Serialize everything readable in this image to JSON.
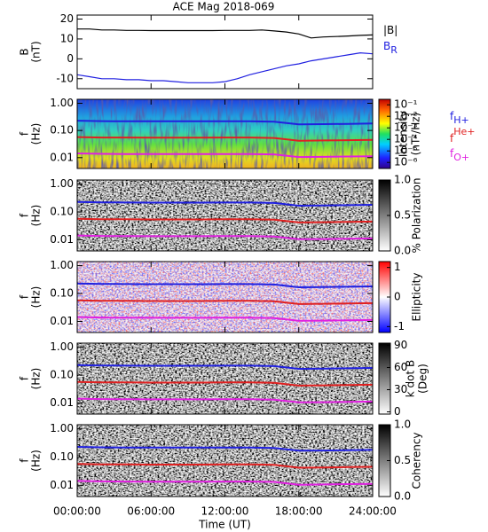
{
  "chart_data": [
    {
      "type": "line",
      "title": "ACE Mag 2018-069",
      "ylabel": [
        "B",
        "(nT)"
      ],
      "x": [
        0,
        1,
        2,
        3,
        4,
        5,
        6,
        7,
        8,
        9,
        10,
        11,
        12,
        13,
        14,
        15,
        16,
        17,
        18,
        19,
        20,
        21,
        22,
        23,
        24
      ],
      "xlim": [
        0,
        24
      ],
      "ylim": [
        -15,
        22
      ],
      "yticks": [
        -10,
        0,
        10,
        20
      ],
      "series": [
        {
          "name": "|B|",
          "color": "#000000",
          "values": [
            15,
            15,
            14.5,
            14.5,
            14.3,
            14.3,
            14.2,
            14.2,
            14.2,
            14.2,
            14.2,
            14.2,
            14.3,
            14.3,
            14.3,
            14.5,
            14,
            13.5,
            12.5,
            10.5,
            11,
            11.2,
            11.5,
            11.8,
            12
          ]
        },
        {
          "name": "B",
          "sub": "R",
          "color": "#2020e0",
          "values": [
            -8,
            -9,
            -10,
            -10,
            -10.5,
            -10.5,
            -11,
            -11,
            -11.5,
            -12,
            -12,
            -12,
            -11.5,
            -10,
            -8,
            -6.5,
            -5,
            -3.5,
            -2.5,
            -1,
            0,
            1,
            2,
            3,
            2.5
          ]
        }
      ]
    },
    {
      "type": "spectrogram",
      "ylabel": [
        "f",
        "(Hz)"
      ],
      "log_y": true,
      "ylim": [
        0.004,
        1.4
      ],
      "yticks": [
        {
          "value": 0.01,
          "label": "0.01"
        },
        {
          "value": 0.1,
          "label": "0.10"
        },
        {
          "value": 1,
          "label": "1.00"
        }
      ],
      "xlim": [
        0,
        24
      ],
      "x": [
        0,
        2,
        4,
        6,
        8,
        10,
        12,
        14,
        16,
        18,
        20,
        22,
        24
      ],
      "colormap": "jet",
      "colorbar_label": [
        "Intensity",
        "(nT²/Hz)"
      ],
      "clog": true,
      "clim": [
        3e-07,
        0.3
      ],
      "cticks": [
        {
          "value": 0.1,
          "label": "10⁻¹"
        },
        {
          "value": 0.01,
          "label": "10⁻²"
        },
        {
          "value": 0.001,
          "label": "10⁻³"
        },
        {
          "value": 0.0001,
          "label": "10⁻⁴"
        },
        {
          "value": 1e-05,
          "label": "10⁻⁵"
        },
        {
          "value": 1e-06,
          "label": "10⁻⁶"
        }
      ],
      "legend": true,
      "series": [
        {
          "name": "f",
          "sub": "H+",
          "color": "#2020e0",
          "values": [
            0.229,
            0.221,
            0.218,
            0.217,
            0.217,
            0.217,
            0.218,
            0.218,
            0.21,
            0.168,
            0.171,
            0.175,
            0.18
          ]
        },
        {
          "name": "f",
          "sup": "He+",
          "color": "#e02020",
          "values": [
            0.057,
            0.055,
            0.055,
            0.054,
            0.054,
            0.054,
            0.055,
            0.055,
            0.053,
            0.042,
            0.043,
            0.044,
            0.045
          ]
        },
        {
          "name": "f",
          "sub": "O+",
          "color": "#e020e0",
          "values": [
            0.0143,
            0.0138,
            0.0136,
            0.0135,
            0.0135,
            0.0135,
            0.0136,
            0.0136,
            0.0132,
            0.0105,
            0.0107,
            0.011,
            0.0112
          ]
        }
      ]
    },
    {
      "type": "spectrogram",
      "ylabel": [
        "f",
        "(Hz)"
      ],
      "log_y": true,
      "ylim": [
        0.004,
        1.4
      ],
      "yticks": [
        {
          "value": 0.01,
          "label": "0.01"
        },
        {
          "value": 0.1,
          "label": "0.10"
        },
        {
          "value": 1,
          "label": "1.00"
        }
      ],
      "xlim": [
        0,
        24
      ],
      "x": [
        0,
        2,
        4,
        6,
        8,
        10,
        12,
        14,
        16,
        18,
        20,
        22,
        24
      ],
      "colormap": "gray",
      "colorbar_label": [
        "% Polarization"
      ],
      "clim": [
        0,
        1
      ],
      "cticks": [
        {
          "value": 0,
          "label": "0.0"
        },
        {
          "value": 0.5,
          "label": "0.5"
        },
        {
          "value": 1,
          "label": "1.0"
        }
      ],
      "series": [
        {
          "color": "#2020e0",
          "values": [
            0.229,
            0.221,
            0.218,
            0.217,
            0.217,
            0.217,
            0.218,
            0.218,
            0.21,
            0.168,
            0.171,
            0.175,
            0.18
          ]
        },
        {
          "color": "#e02020",
          "values": [
            0.057,
            0.055,
            0.055,
            0.054,
            0.054,
            0.054,
            0.055,
            0.055,
            0.053,
            0.042,
            0.043,
            0.044,
            0.045
          ]
        },
        {
          "color": "#e020e0",
          "values": [
            0.0143,
            0.0138,
            0.0136,
            0.0135,
            0.0135,
            0.0135,
            0.0136,
            0.0136,
            0.0132,
            0.0105,
            0.0107,
            0.011,
            0.0112
          ]
        }
      ]
    },
    {
      "type": "spectrogram",
      "ylabel": [
        "f",
        "(Hz)"
      ],
      "log_y": true,
      "ylim": [
        0.004,
        1.4
      ],
      "yticks": [
        {
          "value": 0.01,
          "label": "0.01"
        },
        {
          "value": 0.1,
          "label": "0.10"
        },
        {
          "value": 1,
          "label": "1.00"
        }
      ],
      "xlim": [
        0,
        24
      ],
      "x": [
        0,
        2,
        4,
        6,
        8,
        10,
        12,
        14,
        16,
        18,
        20,
        22,
        24
      ],
      "colormap": "bwr",
      "colorbar_label": [
        "Ellipticity"
      ],
      "clim": [
        -1.2,
        1.2
      ],
      "cticks": [
        -1,
        0,
        1
      ],
      "series": [
        {
          "color": "#2020e0",
          "values": [
            0.229,
            0.221,
            0.218,
            0.217,
            0.217,
            0.217,
            0.218,
            0.218,
            0.21,
            0.168,
            0.171,
            0.175,
            0.18
          ]
        },
        {
          "color": "#e02020",
          "values": [
            0.057,
            0.055,
            0.055,
            0.054,
            0.054,
            0.054,
            0.055,
            0.055,
            0.053,
            0.042,
            0.043,
            0.044,
            0.045
          ]
        },
        {
          "color": "#e020e0",
          "values": [
            0.0143,
            0.0138,
            0.0136,
            0.0135,
            0.0135,
            0.0135,
            0.0136,
            0.0136,
            0.0132,
            0.0105,
            0.0107,
            0.011,
            0.0112
          ]
        }
      ]
    },
    {
      "type": "spectrogram",
      "ylabel": [
        "f",
        "(Hz)"
      ],
      "log_y": true,
      "ylim": [
        0.004,
        1.4
      ],
      "yticks": [
        {
          "value": 0.01,
          "label": "0.01"
        },
        {
          "value": 0.1,
          "label": "0.10"
        },
        {
          "value": 1,
          "label": "1.00"
        }
      ],
      "xlim": [
        0,
        24
      ],
      "x": [
        0,
        2,
        4,
        6,
        8,
        10,
        12,
        14,
        16,
        18,
        20,
        22,
        24
      ],
      "colormap": "gray",
      "colorbar_label": [
        "k dot B",
        "(Deg)"
      ],
      "clim": [
        -3,
        93
      ],
      "cticks": [
        0,
        30,
        60,
        90
      ],
      "series": [
        {
          "color": "#2020e0",
          "values": [
            0.229,
            0.221,
            0.218,
            0.217,
            0.217,
            0.217,
            0.218,
            0.218,
            0.21,
            0.168,
            0.171,
            0.175,
            0.18
          ]
        },
        {
          "color": "#e02020",
          "values": [
            0.057,
            0.055,
            0.055,
            0.054,
            0.054,
            0.054,
            0.055,
            0.055,
            0.053,
            0.042,
            0.043,
            0.044,
            0.045
          ]
        },
        {
          "color": "#e020e0",
          "values": [
            0.0143,
            0.0138,
            0.0136,
            0.0135,
            0.0135,
            0.0135,
            0.0136,
            0.0136,
            0.0132,
            0.0105,
            0.0107,
            0.011,
            0.0112
          ]
        }
      ]
    },
    {
      "type": "spectrogram",
      "ylabel": [
        "f",
        "(Hz)"
      ],
      "log_y": true,
      "ylim": [
        0.004,
        1.4
      ],
      "yticks": [
        {
          "value": 0.01,
          "label": "0.01"
        },
        {
          "value": 0.1,
          "label": "0.10"
        },
        {
          "value": 1,
          "label": "1.00"
        }
      ],
      "xlim": [
        0,
        24
      ],
      "x": [
        0,
        2,
        4,
        6,
        8,
        10,
        12,
        14,
        16,
        18,
        20,
        22,
        24
      ],
      "colormap": "gray",
      "colorbar_label": [
        "Coherency"
      ],
      "clim": [
        0,
        1
      ],
      "cticks": [
        {
          "value": 0,
          "label": "0.0"
        },
        {
          "value": 0.5,
          "label": "0.5"
        },
        {
          "value": 1,
          "label": "1.0"
        }
      ],
      "xlabel": "Time (UT)",
      "xticks": [
        {
          "value": 0,
          "label": "00:00:00"
        },
        {
          "value": 6,
          "label": "06:00:00"
        },
        {
          "value": 12,
          "label": "12:00:00"
        },
        {
          "value": 18,
          "label": "18:00:00"
        },
        {
          "value": 24,
          "label": "24:00:00"
        }
      ],
      "series": [
        {
          "color": "#2020e0",
          "values": [
            0.229,
            0.221,
            0.218,
            0.217,
            0.217,
            0.217,
            0.218,
            0.218,
            0.21,
            0.168,
            0.171,
            0.175,
            0.18
          ]
        },
        {
          "color": "#e02020",
          "values": [
            0.057,
            0.055,
            0.055,
            0.054,
            0.054,
            0.054,
            0.055,
            0.055,
            0.053,
            0.042,
            0.043,
            0.044,
            0.045
          ]
        },
        {
          "color": "#e020e0",
          "values": [
            0.0143,
            0.0138,
            0.0136,
            0.0135,
            0.0135,
            0.0135,
            0.0136,
            0.0136,
            0.0132,
            0.0105,
            0.0107,
            0.011,
            0.0112
          ]
        }
      ]
    }
  ]
}
